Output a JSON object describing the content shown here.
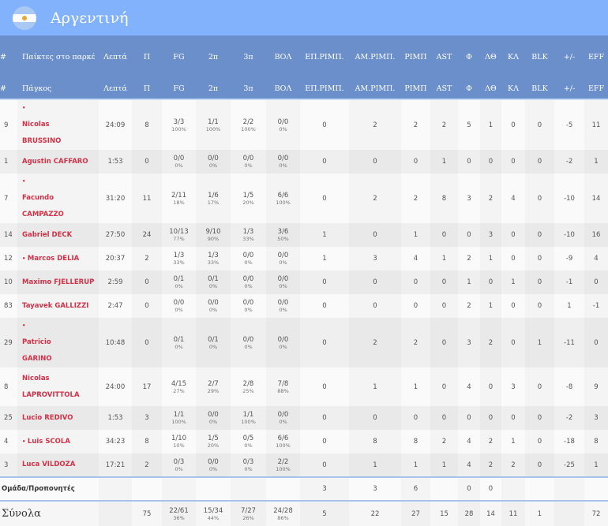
{
  "team": {
    "name": "Αργεντινή",
    "flag_icon": "argentina-flag-icon"
  },
  "colors": {
    "header_band": "#82b2fb",
    "table_header": "#6b8fca",
    "player_name": "#d6334a"
  },
  "header": {
    "row1": [
      "#",
      "Παίκτες στο παρκέ",
      "Λεπτά",
      "Π",
      "FG",
      "2π",
      "3π",
      "ΒΟΛ",
      "ΕΠ.ΡΙΜΠ.",
      "ΑΜ.ΡΙΜΠ.",
      "ΡΙΜΠ",
      "AST",
      "Φ",
      "ΛΘ",
      "ΚΛ",
      "BLK",
      "+/-",
      "EFF"
    ],
    "row2": [
      "#",
      "Πάγκος",
      "Λεπτά",
      "Π",
      "FG",
      "2π",
      "3π",
      "ΒΟΛ",
      "ΕΠ.ΡΙΜΠ.",
      "ΑΜ.ΡΙΜΠ.",
      "ΡΙΜΠ",
      "AST",
      "Φ",
      "ΛΘ",
      "ΚΛ",
      "BLK",
      "+/-",
      "EFF"
    ]
  },
  "players": [
    {
      "no": "9",
      "starter": true,
      "name": "Nicolas BRUSSINO",
      "min": "24:09",
      "pts": "8",
      "fg": "3/3",
      "fg_pct": "100%",
      "p2": "1/1",
      "p2_pct": "100%",
      "p3": "2/2",
      "p3_pct": "100%",
      "ft": "0/0",
      "ft_pct": "0%",
      "oreb": "0",
      "dreb": "2",
      "reb": "2",
      "ast": "2",
      "pf": "5",
      "to": "1",
      "stl": "0",
      "blk": "0",
      "pm": "-5",
      "eff": "11"
    },
    {
      "no": "1",
      "starter": false,
      "name": "Agustin CAFFARO",
      "min": "1:53",
      "pts": "0",
      "fg": "0/0",
      "fg_pct": "0%",
      "p2": "0/0",
      "p2_pct": "0%",
      "p3": "0/0",
      "p3_pct": "0%",
      "ft": "0/0",
      "ft_pct": "0%",
      "oreb": "0",
      "dreb": "0",
      "reb": "0",
      "ast": "1",
      "pf": "0",
      "to": "0",
      "stl": "0",
      "blk": "0",
      "pm": "-2",
      "eff": "1"
    },
    {
      "no": "7",
      "starter": true,
      "name": "Facundo CAMPAZZO",
      "min": "31:20",
      "pts": "11",
      "fg": "2/11",
      "fg_pct": "18%",
      "p2": "1/6",
      "p2_pct": "17%",
      "p3": "1/5",
      "p3_pct": "20%",
      "ft": "6/6",
      "ft_pct": "100%",
      "oreb": "0",
      "dreb": "2",
      "reb": "2",
      "ast": "8",
      "pf": "3",
      "to": "2",
      "stl": "4",
      "blk": "0",
      "pm": "-10",
      "eff": "14"
    },
    {
      "no": "14",
      "starter": false,
      "name": "Gabriel DECK",
      "min": "27:50",
      "pts": "24",
      "fg": "10/13",
      "fg_pct": "77%",
      "p2": "9/10",
      "p2_pct": "90%",
      "p3": "1/3",
      "p3_pct": "33%",
      "ft": "3/6",
      "ft_pct": "50%",
      "oreb": "1",
      "dreb": "0",
      "reb": "1",
      "ast": "0",
      "pf": "0",
      "to": "3",
      "stl": "0",
      "blk": "0",
      "pm": "-10",
      "eff": "16"
    },
    {
      "no": "12",
      "starter": true,
      "name": "Marcos DELIA",
      "min": "20:37",
      "pts": "2",
      "fg": "1/3",
      "fg_pct": "33%",
      "p2": "1/3",
      "p2_pct": "33%",
      "p3": "0/0",
      "p3_pct": "0%",
      "ft": "0/0",
      "ft_pct": "0%",
      "oreb": "1",
      "dreb": "3",
      "reb": "4",
      "ast": "1",
      "pf": "2",
      "to": "1",
      "stl": "0",
      "blk": "0",
      "pm": "-9",
      "eff": "4"
    },
    {
      "no": "10",
      "starter": false,
      "name": "Maximo FJELLERUP",
      "min": "2:59",
      "pts": "0",
      "fg": "0/1",
      "fg_pct": "0%",
      "p2": "0/1",
      "p2_pct": "0%",
      "p3": "0/0",
      "p3_pct": "0%",
      "ft": "0/0",
      "ft_pct": "0%",
      "oreb": "0",
      "dreb": "0",
      "reb": "0",
      "ast": "0",
      "pf": "1",
      "to": "0",
      "stl": "1",
      "blk": "0",
      "pm": "-1",
      "eff": "0"
    },
    {
      "no": "83",
      "starter": false,
      "name": "Tayavek GALLIZZI",
      "min": "2:47",
      "pts": "0",
      "fg": "0/0",
      "fg_pct": "0%",
      "p2": "0/0",
      "p2_pct": "0%",
      "p3": "0/0",
      "p3_pct": "0%",
      "ft": "0/0",
      "ft_pct": "0%",
      "oreb": "0",
      "dreb": "0",
      "reb": "0",
      "ast": "0",
      "pf": "2",
      "to": "1",
      "stl": "0",
      "blk": "0",
      "pm": "1",
      "eff": "-1"
    },
    {
      "no": "29",
      "starter": true,
      "name": "Patricio GARINO",
      "min": "10:48",
      "pts": "0",
      "fg": "0/1",
      "fg_pct": "0%",
      "p2": "0/1",
      "p2_pct": "0%",
      "p3": "0/0",
      "p3_pct": "0%",
      "ft": "0/0",
      "ft_pct": "0%",
      "oreb": "0",
      "dreb": "2",
      "reb": "2",
      "ast": "0",
      "pf": "3",
      "to": "2",
      "stl": "0",
      "blk": "1",
      "pm": "-11",
      "eff": "0"
    },
    {
      "no": "8",
      "starter": false,
      "name": "Nicolas LAPROVITTOLA",
      "min": "24:00",
      "pts": "17",
      "fg": "4/15",
      "fg_pct": "27%",
      "p2": "2/7",
      "p2_pct": "29%",
      "p3": "2/8",
      "p3_pct": "25%",
      "ft": "7/8",
      "ft_pct": "88%",
      "oreb": "0",
      "dreb": "1",
      "reb": "1",
      "ast": "0",
      "pf": "4",
      "to": "0",
      "stl": "3",
      "blk": "0",
      "pm": "-8",
      "eff": "9"
    },
    {
      "no": "25",
      "starter": false,
      "name": "Lucio REDIVO",
      "min": "1:53",
      "pts": "3",
      "fg": "1/1",
      "fg_pct": "100%",
      "p2": "0/0",
      "p2_pct": "0%",
      "p3": "1/1",
      "p3_pct": "100%",
      "ft": "0/0",
      "ft_pct": "0%",
      "oreb": "0",
      "dreb": "0",
      "reb": "0",
      "ast": "0",
      "pf": "0",
      "to": "0",
      "stl": "0",
      "blk": "0",
      "pm": "-2",
      "eff": "3"
    },
    {
      "no": "4",
      "starter": true,
      "name": "Luis SCOLA",
      "min": "34:23",
      "pts": "8",
      "fg": "1/10",
      "fg_pct": "10%",
      "p2": "1/5",
      "p2_pct": "20%",
      "p3": "0/5",
      "p3_pct": "0%",
      "ft": "6/6",
      "ft_pct": "100%",
      "oreb": "0",
      "dreb": "8",
      "reb": "8",
      "ast": "2",
      "pf": "4",
      "to": "2",
      "stl": "1",
      "blk": "0",
      "pm": "-18",
      "eff": "8"
    },
    {
      "no": "3",
      "starter": false,
      "name": "Luca VILDOZA",
      "min": "17:21",
      "pts": "2",
      "fg": "0/3",
      "fg_pct": "0%",
      "p2": "0/0",
      "p2_pct": "0%",
      "p3": "0/3",
      "p3_pct": "0%",
      "ft": "2/2",
      "ft_pct": "100%",
      "oreb": "0",
      "dreb": "1",
      "reb": "1",
      "ast": "1",
      "pf": "4",
      "to": "2",
      "stl": "2",
      "blk": "0",
      "pm": "-25",
      "eff": "1"
    }
  ],
  "team_row": {
    "label": "Ομάδα/Προπονητές",
    "oreb": "3",
    "dreb": "3",
    "reb": "6",
    "pf": "0",
    "to": "0"
  },
  "totals": {
    "label": "Σύνολα",
    "pts": "75",
    "fg": "22/61",
    "fg_pct": "36%",
    "p2": "15/34",
    "p2_pct": "44%",
    "p3": "7/27",
    "p3_pct": "26%",
    "ft": "24/28",
    "ft_pct": "86%",
    "oreb": "5",
    "dreb": "22",
    "reb": "27",
    "ast": "15",
    "pf": "28",
    "to": "14",
    "stl": "11",
    "blk": "1",
    "eff": "72"
  }
}
